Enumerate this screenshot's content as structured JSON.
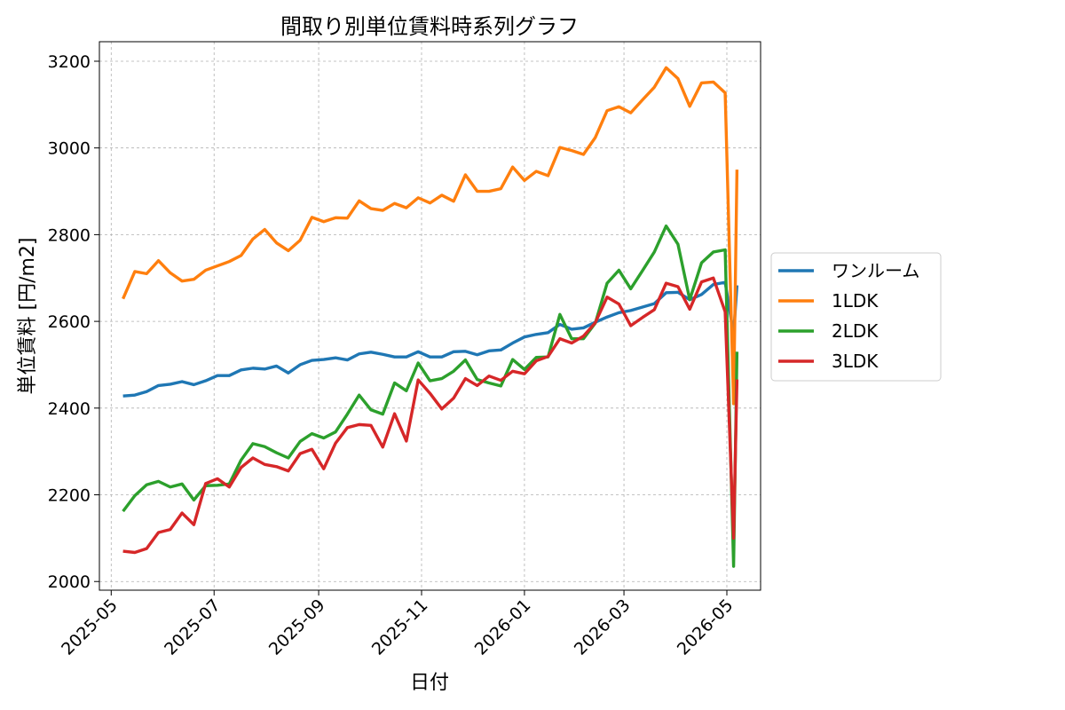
{
  "chart_data": {
    "type": "line",
    "title": "間取り別単位賃料時系列グラフ",
    "xlabel": "日付",
    "ylabel": "単位賃料 [円/m2]",
    "xlim": [
      "2025-04-24",
      "2026-05-21"
    ],
    "ylim": [
      1980,
      3245
    ],
    "x_ticks": [
      "2025-05",
      "2025-07",
      "2025-09",
      "2025-11",
      "2026-01",
      "2026-03",
      "2026-05"
    ],
    "y_ticks": [
      2000,
      2200,
      2400,
      2600,
      2800,
      3000,
      3200
    ],
    "grid": true,
    "legend_position": "right-outside",
    "x": [
      "2025-05-08",
      "2025-05-15",
      "2025-05-22",
      "2025-05-29",
      "2025-06-05",
      "2025-06-12",
      "2025-06-19",
      "2025-06-26",
      "2025-07-03",
      "2025-07-10",
      "2025-07-17",
      "2025-07-24",
      "2025-07-31",
      "2025-08-07",
      "2025-08-14",
      "2025-08-21",
      "2025-08-28",
      "2025-09-04",
      "2025-09-11",
      "2025-09-18",
      "2025-09-25",
      "2025-10-02",
      "2025-10-09",
      "2025-10-16",
      "2025-10-23",
      "2025-10-30",
      "2025-11-06",
      "2025-11-13",
      "2025-11-20",
      "2025-11-27",
      "2025-12-04",
      "2025-12-11",
      "2025-12-18",
      "2025-12-25",
      "2026-01-01",
      "2026-01-08",
      "2026-01-15",
      "2026-01-22",
      "2026-01-29",
      "2026-02-05",
      "2026-02-12",
      "2026-02-19",
      "2026-02-26",
      "2026-03-05",
      "2026-03-12",
      "2026-03-19",
      "2026-03-26",
      "2026-04-02",
      "2026-04-09",
      "2026-04-16",
      "2026-04-23",
      "2026-04-30",
      "2026-05-05",
      "2026-05-07"
    ],
    "series": [
      {
        "name": "ワンルーム",
        "color": "#1f77b4",
        "values": [
          2428,
          2430,
          2438,
          2452,
          2455,
          2461,
          2454,
          2463,
          2475,
          2475,
          2488,
          2492,
          2490,
          2497,
          2481,
          2500,
          2510,
          2512,
          2516,
          2511,
          2525,
          2529,
          2524,
          2518,
          2518,
          2530,
          2518,
          2518,
          2530,
          2531,
          2523,
          2532,
          2534,
          2550,
          2564,
          2570,
          2574,
          2593,
          2582,
          2585,
          2598,
          2610,
          2620,
          2625,
          2633,
          2641,
          2666,
          2667,
          2650,
          2662,
          2685,
          2690,
          2570,
          2683
        ]
      },
      {
        "name": "1LDK",
        "color": "#ff7f0e",
        "values": [
          2652,
          2715,
          2710,
          2740,
          2712,
          2693,
          2697,
          2718,
          2728,
          2738,
          2752,
          2790,
          2812,
          2781,
          2763,
          2787,
          2840,
          2830,
          2839,
          2838,
          2878,
          2860,
          2856,
          2872,
          2862,
          2885,
          2873,
          2891,
          2877,
          2938,
          2900,
          2900,
          2906,
          2956,
          2925,
          2946,
          2936,
          3001,
          2994,
          2985,
          3024,
          3086,
          3095,
          3081,
          3111,
          3140,
          3185,
          3160,
          3096,
          3150,
          3152,
          3127,
          2410,
          2950
        ]
      },
      {
        "name": "2LDK",
        "color": "#2ca02c",
        "values": [
          2162,
          2198,
          2223,
          2231,
          2218,
          2225,
          2188,
          2221,
          2222,
          2225,
          2280,
          2318,
          2311,
          2297,
          2285,
          2323,
          2341,
          2331,
          2345,
          2386,
          2430,
          2396,
          2386,
          2458,
          2440,
          2504,
          2463,
          2468,
          2485,
          2511,
          2466,
          2458,
          2451,
          2512,
          2489,
          2517,
          2518,
          2616,
          2560,
          2560,
          2596,
          2688,
          2718,
          2675,
          2717,
          2760,
          2820,
          2778,
          2650,
          2735,
          2760,
          2765,
          2035,
          2530
        ]
      },
      {
        "name": "3LDK",
        "color": "#d62728",
        "values": [
          2070,
          2067,
          2076,
          2113,
          2120,
          2158,
          2131,
          2226,
          2237,
          2218,
          2263,
          2285,
          2270,
          2265,
          2255,
          2295,
          2305,
          2260,
          2319,
          2355,
          2362,
          2360,
          2310,
          2387,
          2324,
          2465,
          2434,
          2398,
          2423,
          2468,
          2452,
          2474,
          2464,
          2485,
          2479,
          2509,
          2519,
          2560,
          2550,
          2566,
          2597,
          2656,
          2640,
          2590,
          2609,
          2627,
          2688,
          2680,
          2628,
          2691,
          2700,
          2622,
          2100,
          2466
        ]
      }
    ]
  }
}
